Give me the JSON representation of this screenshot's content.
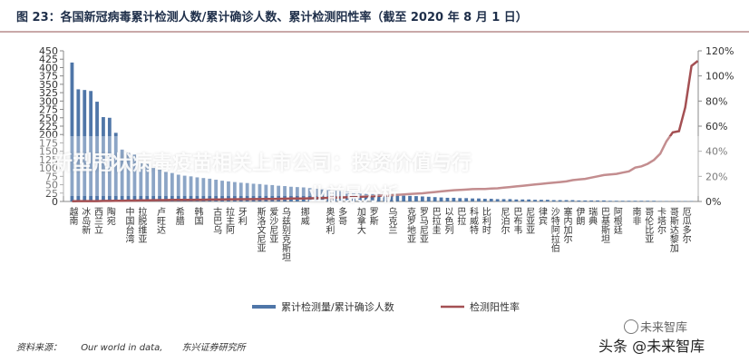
{
  "figure": {
    "title": "图 23：各国新冠病毒累计检测人数/累计确诊人数、累计检测阳性率（截至 2020 年 8 月 1 日）"
  },
  "source": {
    "label": "资料来源：",
    "org1": "Our world in data,",
    "org2": "东兴证券研究所"
  },
  "overlay": {
    "headline_line1": "新型冠状病毒疫苗相关上市公司：投资价值与行",
    "headline_line2": "业前景分析"
  },
  "watermark": {
    "small": "未来智库",
    "main": "头条 @未来智库"
  },
  "colors": {
    "bar": "#4f76a8",
    "line": "#a45053",
    "axis": "#888888",
    "title": "#1f2f4a"
  },
  "chart_data": {
    "type": "bar",
    "categories": [
      "越南",
      "冰岛新",
      "西兰立",
      "陶宛",
      "中国台湾",
      "拉脱维亚",
      "卢旺达",
      "希腊",
      "韩国",
      "古巴乌",
      "拉主阿",
      "牙利",
      "斯洛文尼亚",
      "爱沙尼亚",
      "乌兹别克斯坦",
      "挪威",
      "奥地利",
      "多哥",
      "加拿大",
      "罗斯",
      "乌克兰",
      "克罗地亚",
      "罗马尼亚",
      "巴拉圭",
      "以色列",
      "巴拉",
      "科威特",
      "比利时",
      "尼泊尔",
      "巴布韦",
      "尼亚亚",
      "律宾",
      "沙特阿拉伯",
      "塞内加尔",
      "伊朗",
      "瑞典",
      "巴基斯坦",
      "阿根廷",
      "南非",
      "哥伦比亚",
      "卡塔尔",
      "哥斯达黎加",
      "厄瓜多尔"
    ],
    "bar_series_name": "累计检测量/累计确诊人数",
    "line_series_name": "检测阳性率",
    "bars": [
      {
        "name": "越南",
        "value": 415
      },
      {
        "name": "",
        "value": 335
      },
      {
        "name": "冰岛新",
        "value": 333
      },
      {
        "name": "",
        "value": 330
      },
      {
        "name": "西兰立",
        "value": 298
      },
      {
        "name": "",
        "value": 252
      },
      {
        "name": "陶宛",
        "value": 250
      },
      {
        "name": "",
        "value": 205
      },
      {
        "name": "",
        "value": 155
      },
      {
        "name": "中国台湾",
        "value": 145
      },
      {
        "name": "",
        "value": 140
      },
      {
        "name": "拉脱维亚",
        "value": 115
      },
      {
        "name": "",
        "value": 112
      },
      {
        "name": "",
        "value": 100
      },
      {
        "name": "卢旺达",
        "value": 95
      },
      {
        "name": "",
        "value": 88
      },
      {
        "name": "",
        "value": 85
      },
      {
        "name": "希腊",
        "value": 80
      },
      {
        "name": "",
        "value": 77
      },
      {
        "name": "",
        "value": 75
      },
      {
        "name": "韩国",
        "value": 72
      },
      {
        "name": "",
        "value": 70
      },
      {
        "name": "",
        "value": 68
      },
      {
        "name": "古巴乌",
        "value": 65
      },
      {
        "name": "",
        "value": 62
      },
      {
        "name": "拉主阿",
        "value": 60
      },
      {
        "name": "",
        "value": 58
      },
      {
        "name": "牙利",
        "value": 56
      },
      {
        "name": "",
        "value": 55
      },
      {
        "name": "",
        "value": 53
      },
      {
        "name": "斯洛文尼亚",
        "value": 52
      },
      {
        "name": "",
        "value": 50
      },
      {
        "name": "爱沙尼亚",
        "value": 49
      },
      {
        "name": "",
        "value": 47
      },
      {
        "name": "乌兹别克斯坦",
        "value": 46
      },
      {
        "name": "",
        "value": 44
      },
      {
        "name": "",
        "value": 43
      },
      {
        "name": "挪威",
        "value": 42
      },
      {
        "name": "",
        "value": 40
      },
      {
        "name": "",
        "value": 38
      },
      {
        "name": "",
        "value": 36
      },
      {
        "name": "奥地利",
        "value": 34
      },
      {
        "name": "",
        "value": 32
      },
      {
        "name": "多哥",
        "value": 31
      },
      {
        "name": "",
        "value": 30
      },
      {
        "name": "",
        "value": 28
      },
      {
        "name": "加拿大",
        "value": 27
      },
      {
        "name": "",
        "value": 25
      },
      {
        "name": "罗斯",
        "value": 24
      },
      {
        "name": "",
        "value": 22
      },
      {
        "name": "",
        "value": 21
      },
      {
        "name": "乌克兰",
        "value": 20
      },
      {
        "name": "",
        "value": 19
      },
      {
        "name": "",
        "value": 18
      },
      {
        "name": "克罗地亚",
        "value": 17
      },
      {
        "name": "",
        "value": 16
      },
      {
        "name": "罗马尼亚",
        "value": 15
      },
      {
        "name": "",
        "value": 14
      },
      {
        "name": "巴拉圭",
        "value": 13
      },
      {
        "name": "",
        "value": 12
      },
      {
        "name": "以色列",
        "value": 11
      },
      {
        "name": "",
        "value": 11
      },
      {
        "name": "巴拉",
        "value": 10
      },
      {
        "name": "",
        "value": 10
      },
      {
        "name": "科威特",
        "value": 9
      },
      {
        "name": "",
        "value": 9
      },
      {
        "name": "比利时",
        "value": 8
      },
      {
        "name": "",
        "value": 8
      },
      {
        "name": "",
        "value": 7
      },
      {
        "name": "尼泊尔",
        "value": 7
      },
      {
        "name": "",
        "value": 7
      },
      {
        "name": "巴布韦",
        "value": 6
      },
      {
        "name": "",
        "value": 6
      },
      {
        "name": "尼亚亚",
        "value": 6
      },
      {
        "name": "",
        "value": 5
      },
      {
        "name": "律宾",
        "value": 5
      },
      {
        "name": "",
        "value": 5
      },
      {
        "name": "沙特阿拉伯",
        "value": 4
      },
      {
        "name": "",
        "value": 4
      },
      {
        "name": "塞内加尔",
        "value": 4
      },
      {
        "name": "",
        "value": 4
      },
      {
        "name": "伊朗",
        "value": 3
      },
      {
        "name": "",
        "value": 3
      },
      {
        "name": "瑞典",
        "value": 3
      },
      {
        "name": "",
        "value": 3
      },
      {
        "name": "巴基斯坦",
        "value": 3
      },
      {
        "name": "",
        "value": 2
      },
      {
        "name": "阿根廷",
        "value": 2
      },
      {
        "name": "",
        "value": 2
      },
      {
        "name": "",
        "value": 2
      },
      {
        "name": "南非",
        "value": 2
      },
      {
        "name": "",
        "value": 2
      },
      {
        "name": "哥伦比亚",
        "value": 2
      },
      {
        "name": "",
        "value": 2
      },
      {
        "name": "卡塔尔",
        "value": 1
      },
      {
        "name": "",
        "value": 1
      },
      {
        "name": "哥斯达黎加",
        "value": 1
      },
      {
        "name": "",
        "value": 1
      },
      {
        "name": "厄瓜多尔",
        "value": 1
      },
      {
        "name": "",
        "value": 1
      }
    ],
    "positive_rate": [
      0.2,
      0.3,
      0.3,
      0.3,
      0.3,
      0.4,
      0.4,
      0.5,
      0.6,
      0.7,
      0.7,
      0.9,
      0.9,
      1.0,
      1.1,
      1.1,
      1.2,
      1.3,
      1.3,
      1.3,
      1.4,
      1.4,
      1.5,
      1.5,
      1.6,
      1.7,
      1.7,
      1.8,
      1.8,
      1.9,
      1.9,
      2.0,
      2.0,
      2.1,
      2.2,
      2.3,
      2.3,
      2.4,
      2.5,
      2.6,
      2.8,
      2.9,
      3.1,
      3.2,
      3.3,
      3.6,
      3.7,
      4.0,
      4.2,
      4.5,
      4.8,
      5.0,
      5.3,
      5.6,
      5.9,
      6.2,
      6.5,
      7.0,
      7.5,
      8.0,
      8.5,
      9.0,
      9.2,
      9.5,
      9.8,
      10.0,
      10.0,
      10.3,
      10.5,
      11.0,
      11.5,
      12.0,
      12.5,
      13.0,
      13.5,
      14.0,
      14.5,
      15.0,
      15.5,
      16.0,
      17.0,
      17.5,
      18.0,
      19.0,
      20.0,
      21.0,
      21.5,
      22.0,
      23.0,
      24.0,
      27.0,
      28.0,
      30.0,
      33.0,
      38.0,
      48.0,
      55.0,
      56.0,
      75.0,
      108.0,
      112.0
    ],
    "ylim_left": [
      0,
      450
    ],
    "yticks_left": [
      0,
      25,
      50,
      75,
      100,
      125,
      150,
      175,
      200,
      225,
      250,
      275,
      300,
      325,
      350,
      375,
      400,
      425,
      450
    ],
    "ylim_right": [
      0,
      120
    ],
    "yticks_right": [
      "0%",
      "20%",
      "40%",
      "60%",
      "80%",
      "100%",
      "120%"
    ],
    "legend_position": "bottom-center",
    "grid": false
  }
}
